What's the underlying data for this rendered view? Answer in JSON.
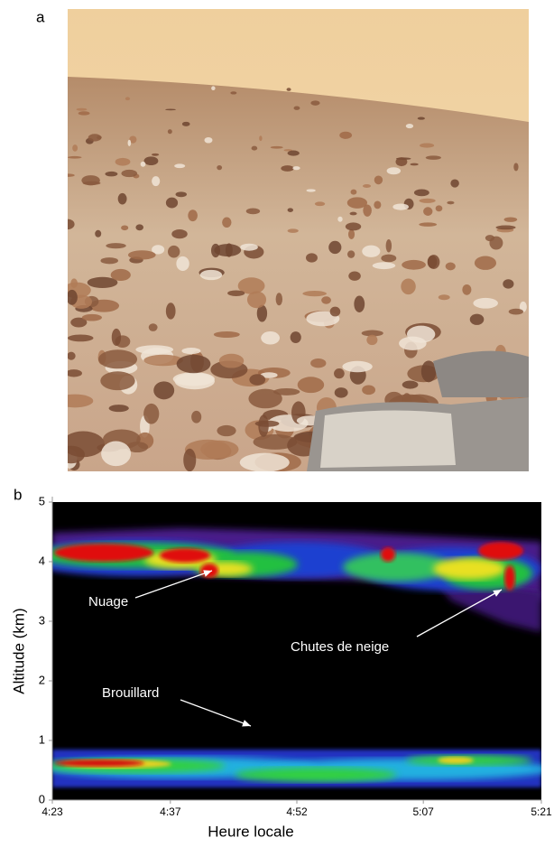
{
  "photo_panel": {
    "label": "a"
  },
  "chart_data": {
    "type": "lidar",
    "panel_label": "b",
    "xlabel": "Heure locale",
    "ylabel": "Altitude (km)",
    "xlim": [
      263,
      321
    ],
    "xticks": [
      {
        "value": 263,
        "label": "4:23"
      },
      {
        "value": 277,
        "label": "4:37"
      },
      {
        "value": 292,
        "label": "4:52"
      },
      {
        "value": 307,
        "label": "5:07"
      },
      {
        "value": 321,
        "label": "5:21"
      }
    ],
    "ylim": [
      0,
      5
    ],
    "yticks": [
      0,
      1,
      2,
      3,
      4,
      5
    ],
    "annotations": [
      "Nuage",
      "Chutes de neige",
      "Brouillard"
    ]
  }
}
